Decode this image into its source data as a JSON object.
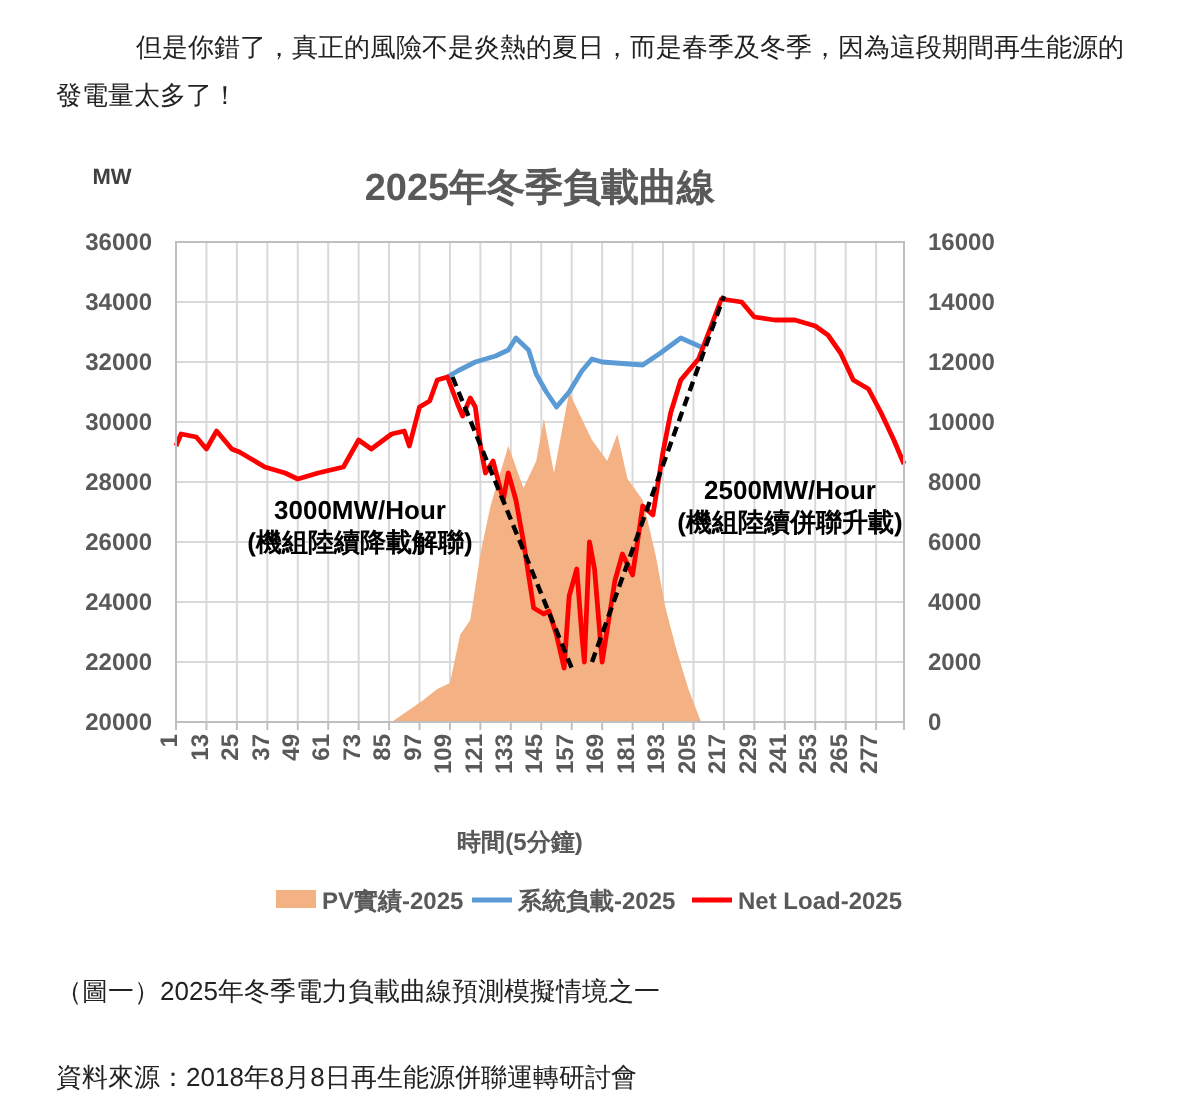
{
  "chart_data": {
    "type": "line",
    "title": "2025年冬季負載曲線",
    "xlabel": "時間(5分鐘)",
    "ylabel": "MW",
    "annotations": [
      {
        "text": "但是你錯了，真正的風險不是炎熱的夏日，而是春季及冬季，因為這段期間再生能源的發電量太多了！"
      },
      "3000MW/Hour",
      "(機組陸續降載解聯)",
      "2500MW/Hour",
      "(機組陸續併聯升載)",
      {
        "text": "（圖一）2025年冬季電力負載曲線預測模擬情境之一"
      },
      {
        "text": "資料來源：2018年8月8日再生能源併聯運轉研討會"
      }
    ],
    "xlim": [
      1,
      288
    ],
    "xticks": [
      1,
      13,
      25,
      37,
      49,
      61,
      73,
      85,
      97,
      109,
      121,
      133,
      145,
      157,
      169,
      181,
      193,
      205,
      217,
      229,
      241,
      253,
      265,
      277
    ],
    "ylim": [
      20000,
      36000
    ],
    "yticks": [
      20000,
      22000,
      24000,
      26000,
      28000,
      30000,
      32000,
      34000,
      36000
    ],
    "y2lim": [
      0,
      16000
    ],
    "y2ticks": [
      0,
      2000,
      4000,
      6000,
      8000,
      10000,
      12000,
      14000,
      16000
    ],
    "grid": true,
    "legend": "bottom",
    "series": [
      {
        "name": "PV實績-2025",
        "type": "area",
        "axis": "y2",
        "color": "#f4b183",
        "x": [
          86,
          98,
          104,
          109,
          113,
          117,
          121,
          125,
          132,
          138,
          143,
          146,
          150,
          156,
          161,
          165,
          171,
          175,
          179,
          185,
          190,
          194,
          198,
          203,
          208
        ],
        "values": [
          0,
          700,
          1100,
          1300,
          2900,
          3400,
          5600,
          7200,
          9200,
          7800,
          8700,
          10100,
          8300,
          11000,
          10100,
          9400,
          8700,
          9600,
          8100,
          7400,
          5600,
          3800,
          2500,
          1100,
          0
        ]
      },
      {
        "name": "系統負載-2025",
        "color": "#5b9bd5",
        "x": [
          108,
          112,
          119,
          127,
          132,
          135,
          140,
          143,
          147,
          151,
          156,
          161,
          165,
          169,
          185,
          192,
          200,
          208
        ],
        "values": [
          31500,
          31700,
          32000,
          32200,
          32400,
          32800,
          32400,
          31600,
          31000,
          30500,
          31000,
          31700,
          32100,
          32000,
          31900,
          32300,
          32800,
          32500
        ]
      },
      {
        "name": "Net Load-2025",
        "color": "#ff0000",
        "x": [
          1,
          3,
          9,
          13,
          17,
          23,
          26,
          36,
          44,
          49,
          57,
          67,
          73,
          78,
          86,
          91,
          93,
          97,
          101,
          104,
          108,
          112,
          114,
          117,
          119,
          121,
          123,
          126,
          130,
          132,
          135,
          138,
          142,
          146,
          148,
          151,
          154,
          156,
          159,
          161,
          162,
          164,
          166,
          169,
          174,
          177,
          181,
          185,
          189,
          193,
          196,
          200,
          207,
          212,
          216,
          224,
          229,
          237,
          245,
          253,
          258,
          263,
          268,
          274,
          279,
          284,
          288
        ],
        "values": [
          29200,
          29600,
          29500,
          29100,
          29700,
          29100,
          29000,
          28500,
          28300,
          28100,
          28300,
          28500,
          29400,
          29100,
          29600,
          29700,
          29200,
          30500,
          30700,
          31400,
          31500,
          30600,
          30200,
          30800,
          30500,
          29200,
          28300,
          28700,
          27400,
          28300,
          27400,
          26000,
          23800,
          23600,
          23700,
          22900,
          21800,
          24200,
          25100,
          22900,
          22000,
          26000,
          25100,
          22000,
          24700,
          25600,
          24900,
          27200,
          26900,
          29000,
          30300,
          31400,
          32100,
          33200,
          34100,
          34000,
          33500,
          33400,
          33400,
          33200,
          32900,
          32300,
          31400,
          31100,
          30300,
          29400,
          28600
        ]
      },
      {
        "type": "line",
        "line_style": "dashed",
        "color": "#000000",
        "x": [
          110,
          157
        ],
        "values": [
          31500,
          21800
        ]
      },
      {
        "type": "line",
        "line_style": "dashed",
        "color": "#000000",
        "x": [
          165,
          217
        ],
        "values": [
          22000,
          34200
        ]
      }
    ]
  }
}
